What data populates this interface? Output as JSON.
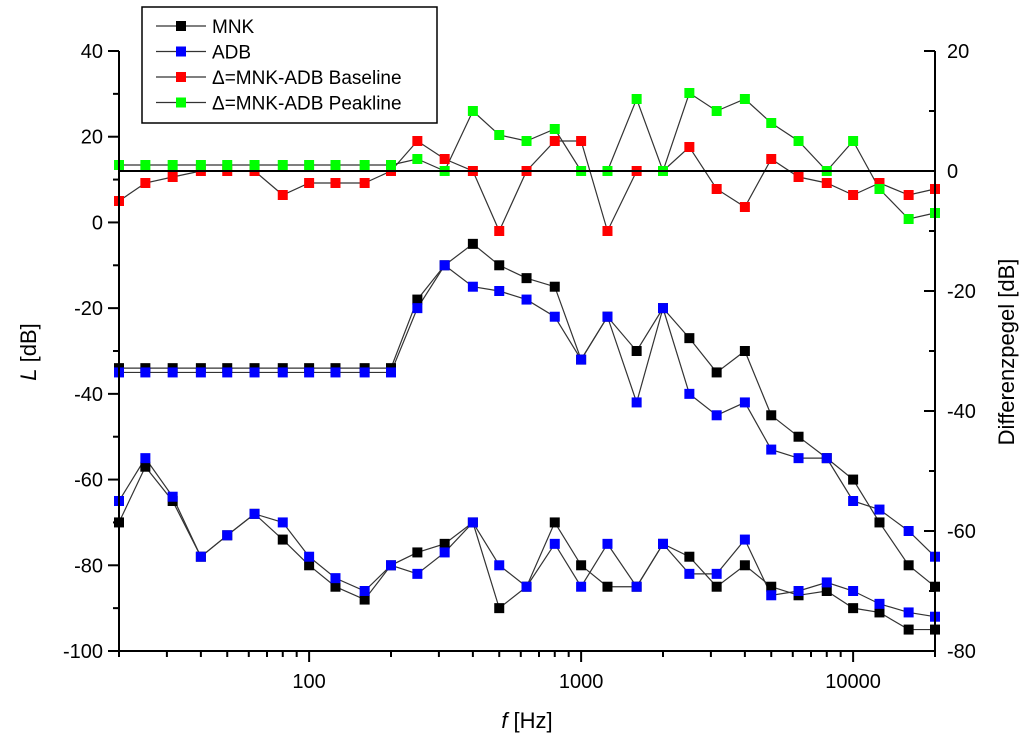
{
  "chart_data": {
    "type": "line",
    "title": "",
    "xlabel_italic": "f",
    "xlabel_rest": " [Hz]",
    "ylabel_italic": "L",
    "ylabel_rest": " [dB]",
    "y2label": "Differenzpegel [dB]",
    "xscale": "log",
    "xlim": [
      20,
      20000
    ],
    "ylim": [
      -100,
      40
    ],
    "y2lim": [
      -80,
      20
    ],
    "x_ticks": [
      100,
      1000,
      10000
    ],
    "x_tick_labels": [
      "100",
      "1000",
      "10000"
    ],
    "y_ticks": [
      40,
      20,
      0,
      -20,
      -40,
      -60,
      -80,
      -100
    ],
    "y_tick_labels": [
      "40",
      "20",
      "0",
      "-20",
      "-40",
      "-60",
      "-80",
      "-100"
    ],
    "y2_ticks": [
      20,
      0,
      -20,
      -40,
      -60,
      -80
    ],
    "y2_tick_labels": [
      "20",
      "0",
      "-20",
      "-40",
      "-60",
      "-80"
    ],
    "grid": false,
    "legend_position": "top-left",
    "reference_line_y2": 0,
    "x": [
      20,
      25,
      31.5,
      40,
      50,
      63,
      80,
      100,
      125,
      160,
      200,
      250,
      315,
      400,
      500,
      630,
      800,
      1000,
      1250,
      1600,
      2000,
      2500,
      3150,
      4000,
      5000,
      6300,
      8000,
      10000,
      12500,
      16000,
      20000
    ],
    "series": [
      {
        "name": "MNK",
        "legend": "MNK",
        "color": "#000000",
        "axis": "left",
        "segments": [
          {
            "label": "peakline",
            "values": [
              -34,
              -34,
              -34,
              -34,
              -34,
              -34,
              -34,
              -34,
              -34,
              -34,
              -34,
              -18,
              -10,
              -5,
              -10,
              -13,
              -15,
              -32,
              -22,
              -30,
              -20,
              -27,
              -35,
              -30,
              -45,
              -50,
              -55,
              -60,
              -70,
              -80,
              -85
            ]
          },
          {
            "label": "baseline",
            "values": [
              -70,
              -57,
              -65,
              -78,
              -73,
              -68,
              -74,
              -80,
              -85,
              -88,
              -80,
              -77,
              -75,
              -70,
              -90,
              -85,
              -70,
              -80,
              -85,
              -85,
              -75,
              -78,
              -85,
              -80,
              -85,
              -87,
              -86,
              -90,
              -91,
              -95,
              -95
            ]
          }
        ]
      },
      {
        "name": "ADB",
        "legend": "ADB",
        "color": "#0000ff",
        "axis": "left",
        "segments": [
          {
            "label": "peakline",
            "values": [
              -35,
              -35,
              -35,
              -35,
              -35,
              -35,
              -35,
              -35,
              -35,
              -35,
              -35,
              -20,
              -10,
              -15,
              -16,
              -18,
              -22,
              -32,
              -22,
              -42,
              -20,
              -40,
              -45,
              -42,
              -53,
              -55,
              -55,
              -65,
              -67,
              -72,
              -78
            ]
          },
          {
            "label": "baseline",
            "values": [
              -65,
              -55,
              -64,
              -78,
              -73,
              -68,
              -70,
              -78,
              -83,
              -86,
              -80,
              -82,
              -77,
              -70,
              -80,
              -85,
              -75,
              -85,
              -75,
              -85,
              -75,
              -82,
              -82,
              -74,
              -87,
              -86,
              -84,
              -86,
              -89,
              -91,
              -92
            ]
          }
        ]
      },
      {
        "name": "Delta Baseline",
        "legend": "Δ=MNK-ADB Baseline",
        "color": "#ff0000",
        "axis": "right",
        "values": [
          -5,
          -2,
          -1,
          0,
          0,
          0,
          -4,
          -2,
          -2,
          -2,
          0,
          5,
          2,
          0,
          -10,
          0,
          5,
          5,
          -10,
          0,
          0,
          4,
          -3,
          -6,
          2,
          -1,
          -2,
          -4,
          -2,
          -4,
          -3
        ]
      },
      {
        "name": "Delta Peakline",
        "legend": "Δ=MNK-ADB Peakline",
        "color": "#00ff00",
        "axis": "right",
        "values": [
          1,
          1,
          1,
          1,
          1,
          1,
          1,
          1,
          1,
          1,
          1,
          2,
          0,
          10,
          6,
          5,
          7,
          0,
          0,
          12,
          0,
          13,
          10,
          12,
          8,
          5,
          0,
          5,
          -3,
          -8,
          -7
        ]
      }
    ]
  }
}
